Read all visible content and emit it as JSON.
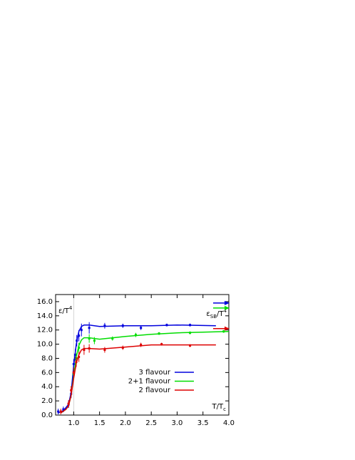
{
  "chart_data": {
    "type": "line",
    "x_label": [
      {
        "text": "T/T"
      },
      {
        "text": "c",
        "style": "sub"
      }
    ],
    "y_annotation": [
      {
        "text": "ε/T"
      },
      {
        "text": "4",
        "style": "sup"
      }
    ],
    "sb_annotation": [
      {
        "text": "ε"
      },
      {
        "text": "SB",
        "style": "sub"
      },
      {
        "text": "/T"
      },
      {
        "text": "4",
        "style": "sup"
      }
    ],
    "xlim": [
      0.65,
      4.0
    ],
    "ylim": [
      0,
      17
    ],
    "xticks": [
      {
        "value": 1,
        "label": "1.0"
      },
      {
        "value": 1.5,
        "label": "1.5"
      },
      {
        "value": 2,
        "label": "2.0"
      },
      {
        "value": 2.5,
        "label": "2.5"
      },
      {
        "value": 3,
        "label": "3.0"
      },
      {
        "value": 3.5,
        "label": "3.5"
      },
      {
        "value": 4,
        "label": "4.0"
      }
    ],
    "yticks": [
      {
        "value": 0,
        "label": "0.0"
      },
      {
        "value": 2,
        "label": "2.0"
      },
      {
        "value": 4,
        "label": "4.0"
      },
      {
        "value": 6,
        "label": "6.0"
      },
      {
        "value": 8,
        "label": "8.0"
      },
      {
        "value": 10,
        "label": "10.0"
      },
      {
        "value": 12,
        "label": "12.0"
      },
      {
        "value": 14,
        "label": "14.0"
      },
      {
        "value": 16,
        "label": "16.0"
      }
    ],
    "reference_x": 1,
    "series": [
      {
        "name": "3 flavour",
        "color": "#0000dd",
        "sb_limit": 15.8,
        "x": [
          0.7,
          0.8,
          0.9,
          0.95,
          1.0,
          1.03,
          1.06,
          1.1,
          1.15,
          1.3,
          1.6,
          1.95,
          2.3,
          2.8,
          3.25
        ],
        "values": [
          0.5,
          0.8,
          1.5,
          3.0,
          7.2,
          8.5,
          10.5,
          11.2,
          12.0,
          12.3,
          12.6,
          12.6,
          12.3,
          12.7,
          12.7
        ],
        "errors": [
          0.4,
          0.4,
          0.5,
          0.6,
          0.7,
          0.8,
          0.8,
          0.8,
          0.9,
          0.8,
          0.4,
          0.3,
          0.3,
          0.2,
          0.2
        ],
        "curve_x": [
          0.7,
          0.8,
          0.9,
          0.95,
          1.0,
          1.05,
          1.1,
          1.15,
          1.2,
          1.3,
          1.5,
          2.0,
          2.5,
          3.0,
          3.75
        ],
        "curve_y": [
          0.3,
          0.6,
          1.5,
          3.2,
          7.0,
          10.0,
          11.8,
          12.5,
          12.7,
          12.7,
          12.5,
          12.6,
          12.6,
          12.7,
          12.6
        ]
      },
      {
        "name": "2+1 flavour",
        "color": "#00dd00",
        "sb_limit": 15.1,
        "x": [
          1.0,
          1.05,
          1.1,
          1.3,
          1.4,
          1.75,
          2.2,
          2.65,
          3.25,
          3.9
        ],
        "values": [
          5.8,
          8.0,
          9.5,
          10.8,
          10.5,
          10.8,
          11.3,
          11.5,
          11.6,
          11.8
        ],
        "errors": [
          0.6,
          0.7,
          0.7,
          0.6,
          0.5,
          0.3,
          0.3,
          0.2,
          0.2,
          0.2
        ],
        "curve_x": [
          0.75,
          0.85,
          0.9,
          0.95,
          1.0,
          1.05,
          1.1,
          1.15,
          1.2,
          1.3,
          1.5,
          2.0,
          2.5,
          3.0,
          3.5,
          4.0
        ],
        "curve_y": [
          0.3,
          0.8,
          1.3,
          2.8,
          5.5,
          8.2,
          9.8,
          10.6,
          10.9,
          10.9,
          10.7,
          11.1,
          11.4,
          11.6,
          11.7,
          11.8
        ]
      },
      {
        "name": "2 flavour",
        "color": "#dd0000",
        "sb_limit": 12.2,
        "x": [
          0.75,
          0.9,
          0.95,
          1.0,
          1.05,
          1.1,
          1.2,
          1.3,
          1.6,
          1.95,
          2.3,
          2.7,
          3.25
        ],
        "values": [
          0.5,
          1.6,
          3.5,
          6.0,
          7.5,
          8.2,
          9.2,
          9.4,
          9.2,
          9.5,
          9.9,
          10.0,
          9.8
        ],
        "errors": [
          0.4,
          0.5,
          0.6,
          0.7,
          0.7,
          0.7,
          0.7,
          0.6,
          0.4,
          0.3,
          0.3,
          0.2,
          0.2
        ],
        "curve_x": [
          0.75,
          0.85,
          0.9,
          0.95,
          1.0,
          1.05,
          1.1,
          1.15,
          1.2,
          1.3,
          1.5,
          2.0,
          2.5,
          3.0,
          3.75
        ],
        "curve_y": [
          0.3,
          0.8,
          1.3,
          2.8,
          5.2,
          7.3,
          8.5,
          9.2,
          9.4,
          9.4,
          9.3,
          9.6,
          9.9,
          9.9,
          9.9
        ]
      }
    ]
  }
}
